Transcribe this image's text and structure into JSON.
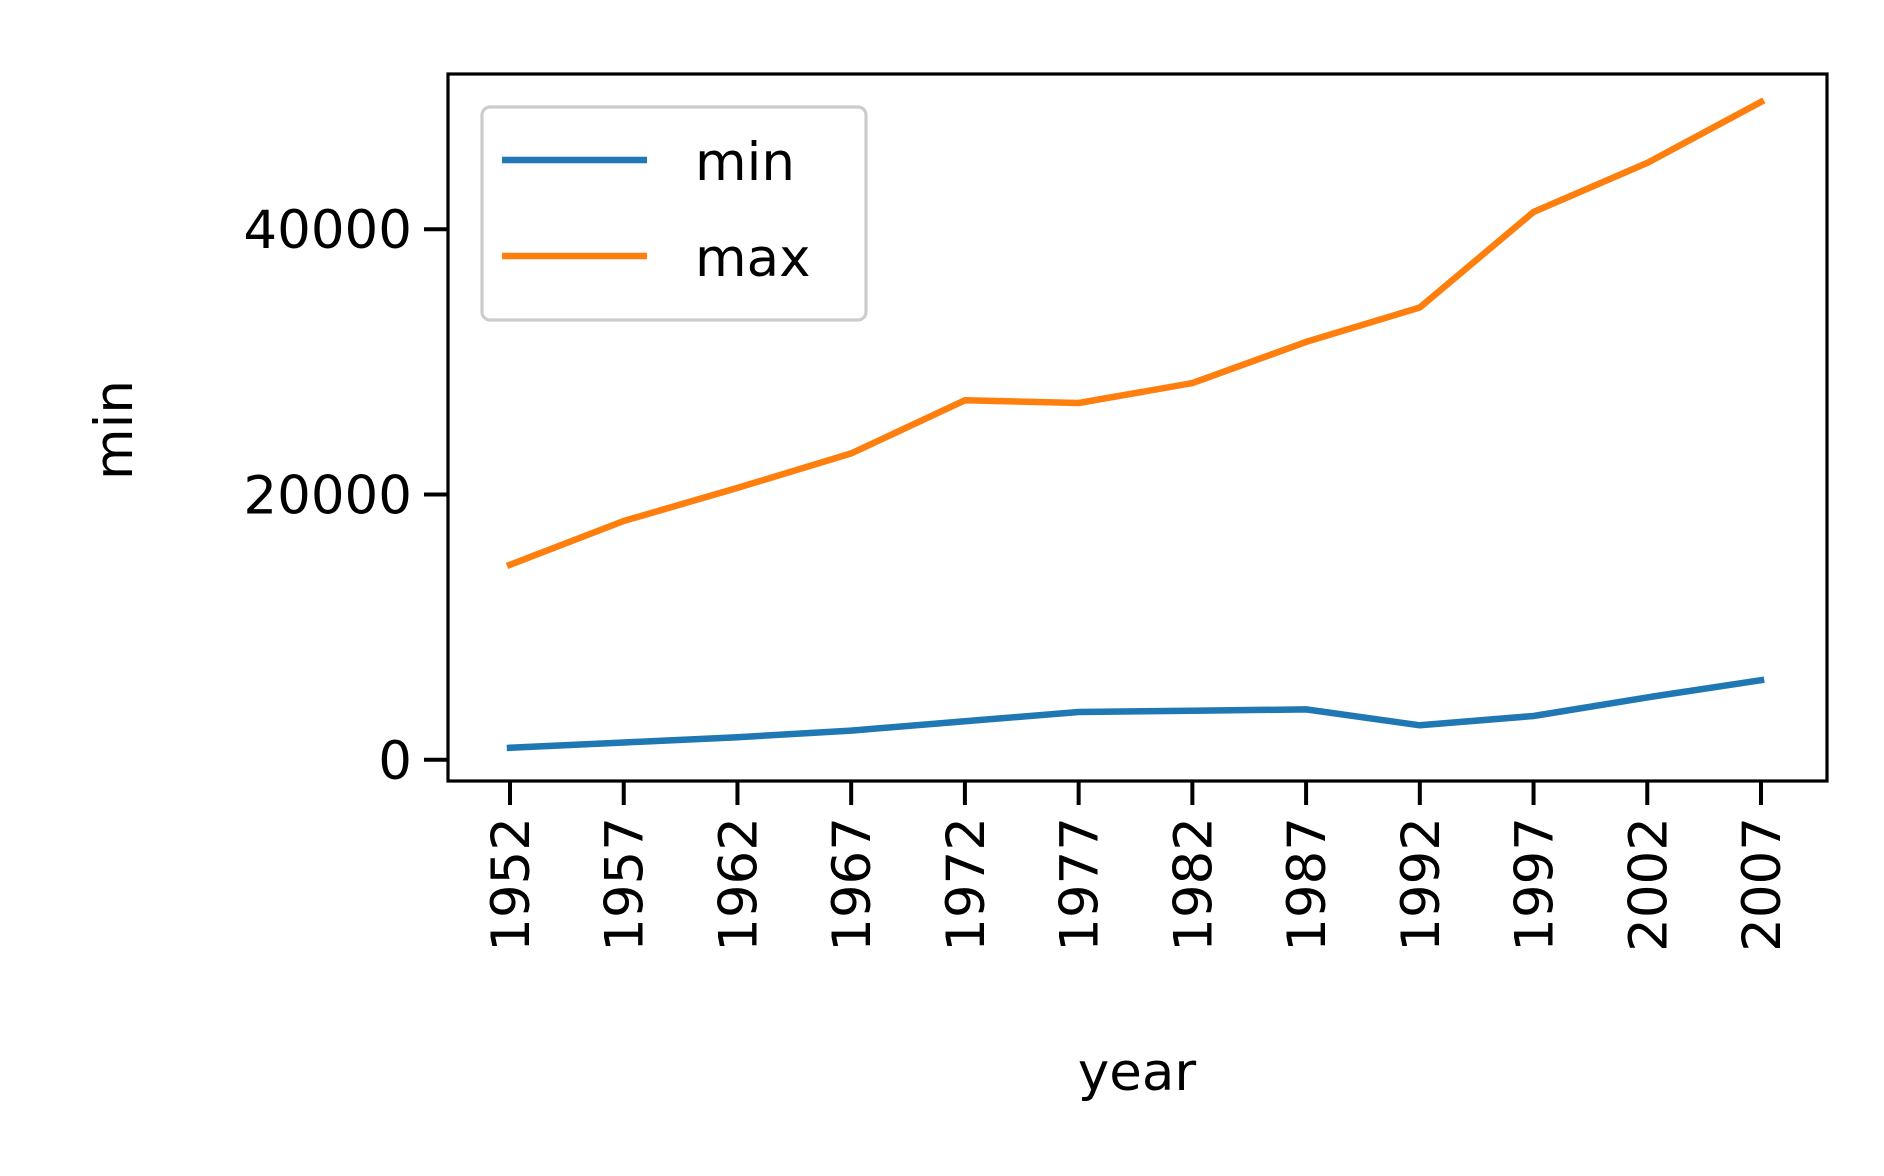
{
  "chart_data": {
    "type": "line",
    "xlabel": "year",
    "ylabel": "min",
    "x": [
      1952,
      1957,
      1962,
      1967,
      1972,
      1977,
      1982,
      1987,
      1992,
      1997,
      2002,
      2007
    ],
    "xtick_labels": [
      "1952",
      "1957",
      "1962",
      "1967",
      "1972",
      "1977",
      "1982",
      "1987",
      "1992",
      "1997",
      "2002",
      "2007"
    ],
    "yticks": [
      0,
      20000,
      40000
    ],
    "ytick_labels": [
      "0",
      "20000",
      "40000"
    ],
    "ylim": [
      -1600,
      51700
    ],
    "grid": false,
    "legend_position": "top-left",
    "series": [
      {
        "name": "min",
        "color": "#1f77b4",
        "values": [
          900,
          1300,
          1700,
          2200,
          2900,
          3600,
          3700,
          3800,
          2600,
          3300,
          4700,
          6000
        ]
      },
      {
        "name": "max",
        "color": "#ff7f0e",
        "values": [
          14700,
          18000,
          20500,
          23100,
          27100,
          26900,
          28400,
          31500,
          34100,
          41300,
          45000,
          49600
        ]
      }
    ]
  }
}
